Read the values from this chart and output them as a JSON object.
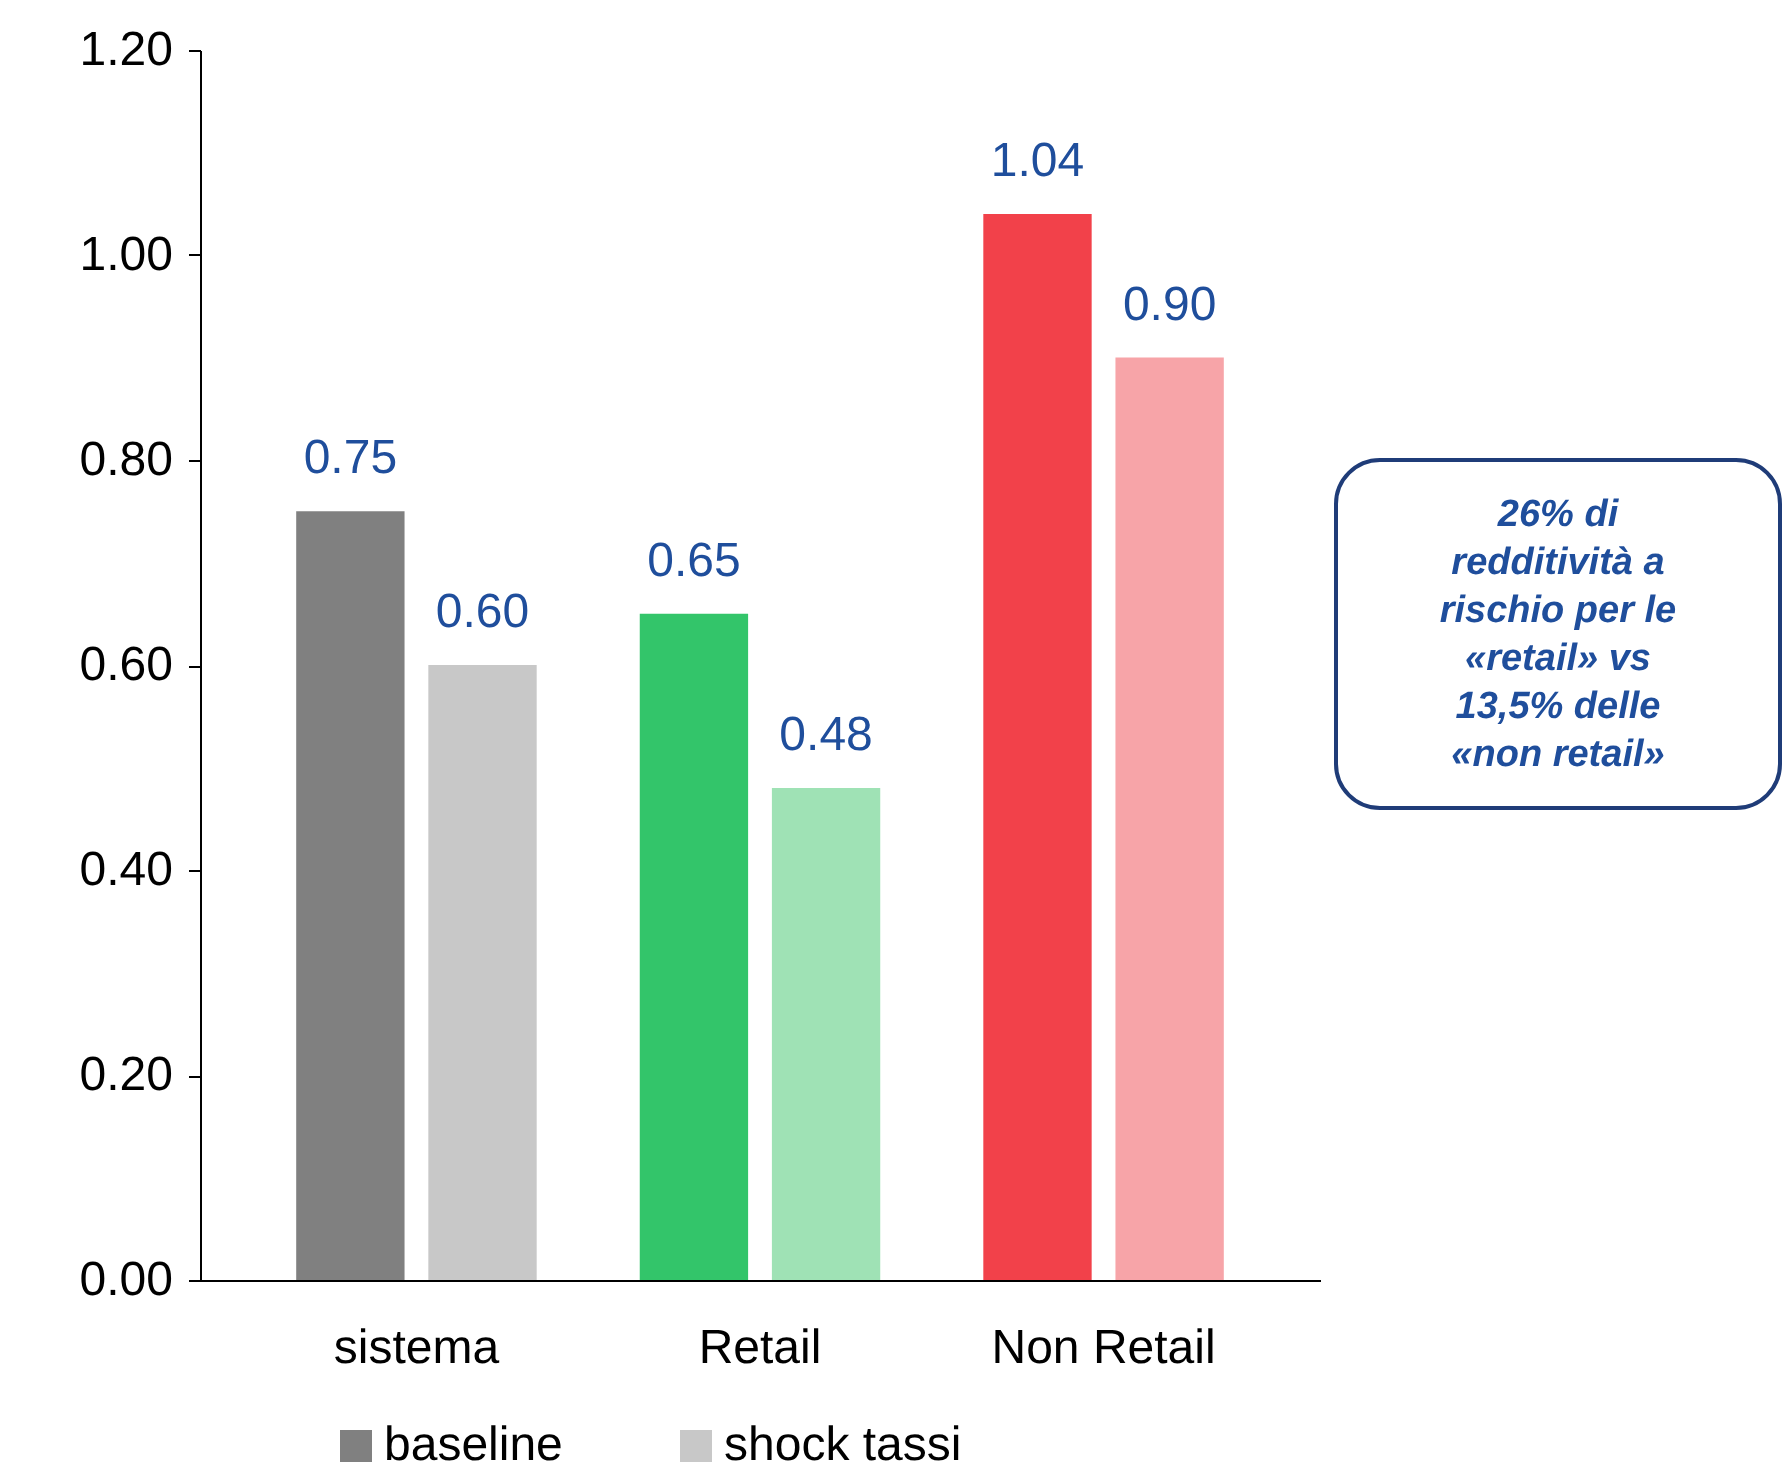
{
  "chart_data": {
    "type": "bar",
    "categories": [
      "sistema",
      "Retail",
      "Non Retail"
    ],
    "series": [
      {
        "name": "baseline",
        "color": "#808080",
        "colors": [
          "#808080",
          "#33c56a",
          "#f2414a"
        ],
        "values": [
          0.75,
          0.65,
          1.04
        ],
        "value_labels": [
          "0.75",
          "0.65",
          "1.04"
        ]
      },
      {
        "name": "shock tassi",
        "color": "#c8c8c8",
        "colors": [
          "#c8c8c8",
          "#9fe2b5",
          "#f7a4a8"
        ],
        "values": [
          0.6,
          0.48,
          0.9
        ],
        "value_labels": [
          "0.60",
          "0.48",
          "0.90"
        ]
      }
    ],
    "ylim": [
      0,
      1.2
    ],
    "yticks": [
      {
        "value": 0,
        "label": "0.00"
      },
      {
        "value": 0.2,
        "label": "0.20"
      },
      {
        "value": 0.4,
        "label": "0.40"
      },
      {
        "value": 0.6,
        "label": "0.60"
      },
      {
        "value": 0.8,
        "label": "0.80"
      },
      {
        "value": 1,
        "label": "1.00"
      },
      {
        "value": 1.2,
        "label": "1.20"
      }
    ],
    "annotations": [
      "26% di redditività a rischio per le «retail» vs 13,5% delle «non retail»"
    ],
    "grid": false,
    "legend": "bottom"
  }
}
